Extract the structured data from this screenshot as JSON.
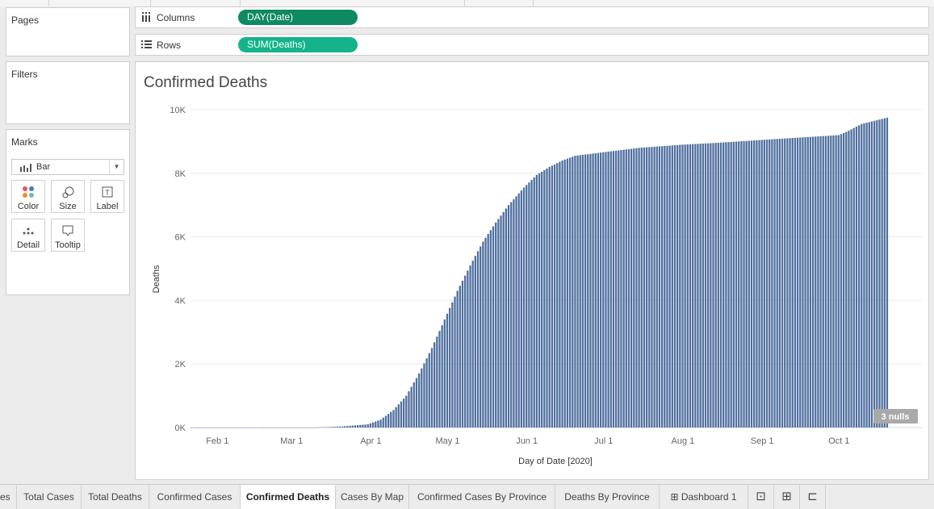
{
  "cards": {
    "pages": "Pages",
    "filters": "Filters",
    "marks": "Marks"
  },
  "marks": {
    "type": "Bar",
    "buttons": {
      "color": "Color",
      "size": "Size",
      "label": "Label",
      "detail": "Detail",
      "tooltip": "Tooltip"
    }
  },
  "shelves": {
    "columns": {
      "label": "Columns",
      "pill": "DAY(Date)"
    },
    "rows": {
      "label": "Rows",
      "pill": "SUM(Deaths)"
    }
  },
  "viz": {
    "title": "Confirmed Deaths",
    "nulls": "3 nulls"
  },
  "colors": {
    "bar": "#4e6e9e",
    "columns_pill": "#0e8a63",
    "rows_pill": "#14b38a"
  },
  "chart_data": {
    "type": "bar",
    "title": "Confirmed Deaths",
    "xlabel": "Day of Date [2020]",
    "ylabel": "Deaths",
    "ylim": [
      0,
      10000
    ],
    "y_ticks": [
      "0K",
      "2K",
      "4K",
      "6K",
      "8K",
      "10K"
    ],
    "x_ticks": [
      "Feb 1",
      "Mar 1",
      "Apr 1",
      "May 1",
      "Jun 1",
      "Jul 1",
      "Aug 1",
      "Sep 1",
      "Oct 1"
    ],
    "x_start": "2020-01-22",
    "x_end": "2020-10-20",
    "grid": true,
    "series": [
      {
        "values_by_date": [
          [
            "2020-01-22",
            0
          ],
          [
            "2020-03-10",
            0
          ],
          [
            "2020-03-20",
            30
          ],
          [
            "2020-03-31",
            100
          ],
          [
            "2020-04-05",
            250
          ],
          [
            "2020-04-10",
            550
          ],
          [
            "2020-04-15",
            1000
          ],
          [
            "2020-04-20",
            1700
          ],
          [
            "2020-04-25",
            2500
          ],
          [
            "2020-04-30",
            3400
          ],
          [
            "2020-05-05",
            4300
          ],
          [
            "2020-05-10",
            5100
          ],
          [
            "2020-05-15",
            5850
          ],
          [
            "2020-05-20",
            6450
          ],
          [
            "2020-05-25",
            7000
          ],
          [
            "2020-05-31",
            7550
          ],
          [
            "2020-06-05",
            7950
          ],
          [
            "2020-06-10",
            8200
          ],
          [
            "2020-06-15",
            8400
          ],
          [
            "2020-06-20",
            8550
          ],
          [
            "2020-06-30",
            8650
          ],
          [
            "2020-07-15",
            8800
          ],
          [
            "2020-08-01",
            8900
          ],
          [
            "2020-08-15",
            8960
          ],
          [
            "2020-09-01",
            9050
          ],
          [
            "2020-09-15",
            9120
          ],
          [
            "2020-10-01",
            9200
          ],
          [
            "2020-10-04",
            9300
          ],
          [
            "2020-10-10",
            9550
          ],
          [
            "2020-10-20",
            9750
          ]
        ]
      }
    ]
  },
  "tabs": [
    {
      "label": "es"
    },
    {
      "label": "Total Cases"
    },
    {
      "label": "Total Deaths"
    },
    {
      "label": "Confirmed Cases"
    },
    {
      "label": "Confirmed Deaths",
      "active": true
    },
    {
      "label": "Cases By Map"
    },
    {
      "label": "Confirmed Cases By Province"
    },
    {
      "label": "Deaths By Province"
    },
    {
      "label": "Dashboard 1"
    }
  ],
  "tab_icons": [
    "new-worksheet-icon",
    "new-dashboard-icon",
    "new-story-icon"
  ]
}
